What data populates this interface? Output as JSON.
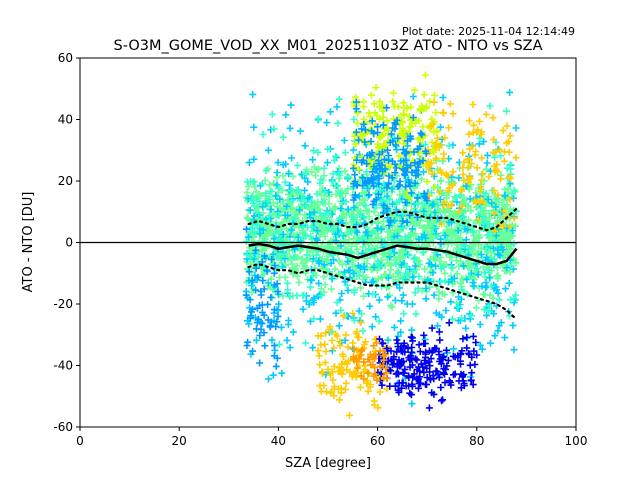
{
  "plot_date_text": "Plot date: 2025-11-04 12:14:49",
  "chart_data": {
    "type": "scatter",
    "title": "S-O3M_GOME_VOD_XX_M01_20251103Z ATO - NTO vs SZA",
    "xlabel": "SZA [degree]",
    "ylabel": "ATO - NTO [DU]",
    "xlim": [
      0,
      100
    ],
    "ylim": [
      -60,
      60
    ],
    "x_ticks": [
      0,
      20,
      40,
      60,
      80,
      100
    ],
    "y_ticks": [
      -60,
      -40,
      -20,
      0,
      20,
      40,
      60
    ],
    "grid": false,
    "legend": "none",
    "reference_line_y": 0,
    "marker": "+",
    "colors": {
      "dense": "#66ff99",
      "mid": "#00ccff",
      "low": "#0000ee",
      "mid_alt": "#0099ff",
      "high": "#ffcc00",
      "high_alt": "#ccff00",
      "hot": "#ff9900",
      "aqua": "#33ffcc",
      "stat_line": "#000000"
    },
    "scatter_series": [
      {
        "color_key": "dense",
        "x_range": [
          33.5,
          88
        ],
        "center": 3,
        "spread": 14,
        "count": 1400
      },
      {
        "color_key": "mid",
        "x_range": [
          33.5,
          88
        ],
        "center": 0,
        "spread": 30,
        "count": 500
      },
      {
        "color_key": "aqua",
        "x_range": [
          33.5,
          88
        ],
        "center": 5,
        "spread": 24,
        "count": 300
      },
      {
        "color_key": "high_alt",
        "x_range": [
          55,
          72
        ],
        "center": 35,
        "spread": 12,
        "count": 180
      },
      {
        "color_key": "high",
        "x_range": [
          70,
          88
        ],
        "center": 25,
        "spread": 16,
        "count": 120
      },
      {
        "color_key": "high",
        "x_range": [
          48,
          62
        ],
        "center": -40,
        "spread": 10,
        "count": 110
      },
      {
        "color_key": "low",
        "x_range": [
          60,
          80
        ],
        "center": -40,
        "spread": 8,
        "count": 200
      },
      {
        "color_key": "mid_alt",
        "x_range": [
          55,
          70
        ],
        "center": 25,
        "spread": 12,
        "count": 150
      },
      {
        "color_key": "hot",
        "x_range": [
          55,
          62
        ],
        "center": -38,
        "spread": 6,
        "count": 40
      },
      {
        "color_key": "mid_alt",
        "x_range": [
          33.5,
          40
        ],
        "center": -20,
        "spread": 14,
        "count": 60
      }
    ],
    "upper_dotted_line": {
      "x": [
        34,
        36,
        38,
        40,
        42,
        44,
        46,
        48,
        50,
        52,
        54,
        56,
        58,
        60,
        62,
        64,
        66,
        68,
        70,
        72,
        74,
        76,
        78,
        80,
        82,
        84,
        86,
        88
      ],
      "y": [
        6,
        7,
        6,
        5,
        6,
        6,
        7,
        7,
        6,
        6,
        5,
        5,
        6,
        8,
        9,
        10,
        10,
        9,
        8,
        8,
        8,
        7,
        6,
        5,
        4,
        5,
        8,
        11
      ]
    },
    "median_line": {
      "x": [
        34,
        36,
        38,
        40,
        42,
        44,
        46,
        48,
        50,
        52,
        54,
        56,
        58,
        60,
        62,
        64,
        66,
        68,
        70,
        72,
        74,
        76,
        78,
        80,
        82,
        84,
        86,
        88
      ],
      "y": [
        -1,
        -0.5,
        -1,
        -2,
        -1.5,
        -1,
        -1.5,
        -2,
        -3,
        -3.5,
        -4,
        -5,
        -4,
        -3,
        -2,
        -1,
        -1.5,
        -2,
        -2,
        -2.5,
        -3,
        -4,
        -5,
        -6,
        -7,
        -7,
        -6,
        -2
      ]
    },
    "lower_dotted_line": {
      "x": [
        34,
        36,
        38,
        40,
        42,
        44,
        46,
        48,
        50,
        52,
        54,
        56,
        58,
        60,
        62,
        64,
        66,
        68,
        70,
        72,
        74,
        76,
        78,
        80,
        82,
        84,
        86,
        88
      ],
      "y": [
        -8,
        -7,
        -8,
        -9,
        -9,
        -10,
        -9,
        -9,
        -10,
        -11,
        -12,
        -13,
        -14,
        -14,
        -14,
        -13,
        -13,
        -13,
        -13,
        -14,
        -15,
        -16,
        -17,
        -18,
        -19,
        -20,
        -22,
        -25
      ]
    }
  }
}
